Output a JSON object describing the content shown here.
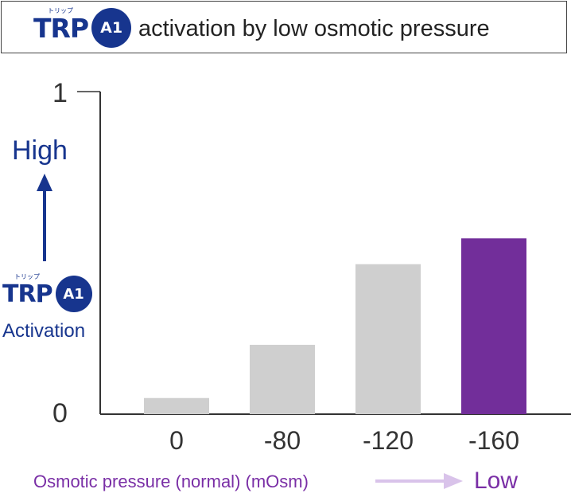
{
  "header": {
    "logo_trp": "TRP",
    "logo_kana": "トリップ",
    "logo_badge": "A1",
    "title": "activation by low osmotic pressure"
  },
  "side_label": {
    "high": "High",
    "logo_trp": "TRP",
    "logo_kana": "トリップ",
    "logo_badge": "A1",
    "activation": "Activation"
  },
  "footer": {
    "xlabel": "Osmotic pressure (normal) (mOsm)",
    "low": "Low"
  },
  "colors": {
    "brand_blue": "#17358e",
    "bar_gray": "#cfcfcf",
    "bar_highlight": "#722e9a",
    "axis_label_purple": "#7a2fa6",
    "arrow_lavender": "#d9c3ea"
  },
  "chart_data": {
    "type": "bar",
    "categories": [
      "0",
      "-80",
      "-120",
      "-160"
    ],
    "values": [
      0.05,
      0.215,
      0.465,
      0.545
    ],
    "highlight_index": 3,
    "ylim": [
      0,
      1
    ],
    "yticks": [
      "0",
      "1"
    ],
    "title": "",
    "xlabel": "Osmotic pressure (normal) (mOsm)",
    "ylabel": "Activation",
    "grid": false
  }
}
